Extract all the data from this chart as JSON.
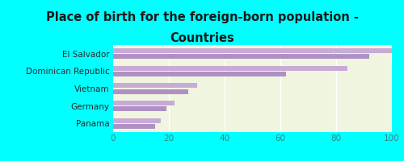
{
  "title_line1": "Place of birth for the foreign-born population -",
  "title_line2": "Countries",
  "categories": [
    "El Salvador",
    "Dominican Republic",
    "Vietnam",
    "Germany",
    "Panama"
  ],
  "values1": [
    100,
    84,
    30,
    22,
    17
  ],
  "values2": [
    92,
    62,
    27,
    19,
    15
  ],
  "bar_color1": "#c9aad6",
  "bar_color2": "#b090c4",
  "background_color": "#00ffff",
  "plot_bg_top": "#f0f5e0",
  "plot_bg_bottom": "#e8f0d0",
  "xlim": [
    0,
    100
  ],
  "xticks": [
    0,
    20,
    40,
    60,
    80,
    100
  ],
  "title_fontsize": 10.5,
  "label_fontsize": 7.5,
  "tick_fontsize": 7.5,
  "bar_height": 0.28,
  "bar_gap": 0.06,
  "label_color": "#2a2a2a",
  "tick_color": "#2a8a8a",
  "title_color": "#1a1a1a",
  "watermark_color": "#b0c8d8",
  "watermark_alpha": 0.6
}
